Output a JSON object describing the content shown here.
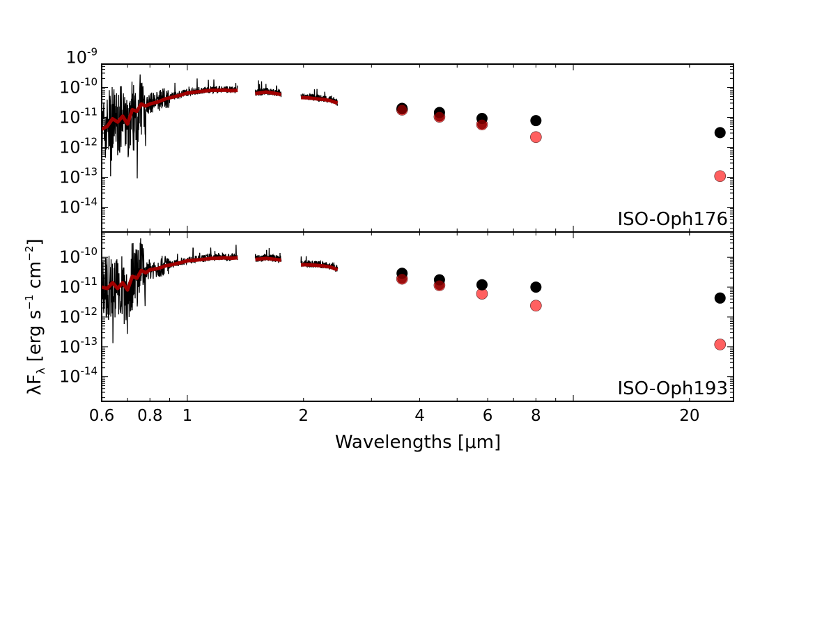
{
  "chart_data": {
    "type": "line+scatter",
    "x_scale": "log",
    "y_scale": "log",
    "xlim": [
      0.6,
      26
    ],
    "xlabel": "Wavelengths [μm]",
    "ylabel_parts": {
      "lambda": "λF",
      "sub": "λ",
      "open": " [erg s",
      "sup1": "−1",
      "mid": " cm",
      "sup2": "−2",
      "close": "]"
    },
    "x_ticks": [
      {
        "value": 0.6,
        "label": "0.6"
      },
      {
        "value": 0.8,
        "label": "0.8"
      },
      {
        "value": 1,
        "label": "1"
      },
      {
        "value": 2,
        "label": "2"
      },
      {
        "value": 4,
        "label": "4"
      },
      {
        "value": 6,
        "label": "6"
      },
      {
        "value": 8,
        "label": "8"
      },
      {
        "value": 20,
        "label": "20"
      }
    ],
    "colors": {
      "observed": "#000000",
      "model": "#a00000",
      "model_photometry": "#ff6060"
    },
    "panels": [
      {
        "name": "ISO-Oph176",
        "ylim": [
          1.5e-15,
          6e-10
        ],
        "y_ticks": [
          {
            "value": 1e-09,
            "base": "10",
            "exp": "-9"
          },
          {
            "value": 1e-10,
            "base": "10",
            "exp": "-10"
          },
          {
            "value": 1e-11,
            "base": "10",
            "exp": "-11"
          },
          {
            "value": 1e-12,
            "base": "10",
            "exp": "-12"
          },
          {
            "value": 1e-13,
            "base": "10",
            "exp": "-13"
          },
          {
            "value": 1e-14,
            "base": "10",
            "exp": "-14"
          }
        ],
        "spectrum_segments": [
          {
            "x": [
              0.6,
              0.62,
              0.64,
              0.66,
              0.68,
              0.7,
              0.72,
              0.74,
              0.76,
              0.78,
              0.8,
              0.84,
              0.88,
              0.92,
              0.96,
              1.0,
              1.05,
              1.1,
              1.15,
              1.2,
              1.25,
              1.3,
              1.35
            ],
            "y": [
              3e-12,
              5e-12,
              1e-11,
              6e-12,
              1.2e-11,
              5e-12,
              2e-11,
              1.5e-11,
              3e-11,
              2.5e-11,
              3e-11,
              3.5e-11,
              4.5e-11,
              5e-11,
              6e-11,
              7e-11,
              7.5e-11,
              8e-11,
              8.5e-11,
              8.5e-11,
              9e-11,
              8e-11,
              8.5e-11
            ]
          },
          {
            "x": [
              1.5,
              1.55,
              1.6,
              1.65,
              1.7,
              1.75
            ],
            "y": [
              6.5e-11,
              7e-11,
              7.5e-11,
              7e-11,
              6.5e-11,
              6e-11
            ]
          },
          {
            "x": [
              1.97,
              2.05,
              2.15,
              2.25,
              2.35,
              2.45
            ],
            "y": [
              5e-11,
              4.8e-11,
              4.5e-11,
              4.2e-11,
              4e-11,
              3.2e-11
            ]
          }
        ],
        "model_segments": [
          {
            "x": [
              0.6,
              0.62,
              0.64,
              0.66,
              0.68,
              0.7,
              0.72,
              0.74,
              0.76,
              0.78,
              0.8,
              0.84,
              0.88,
              0.92,
              0.96,
              1.0,
              1.05,
              1.1,
              1.15,
              1.2,
              1.25,
              1.3,
              1.35
            ],
            "y": [
              4e-12,
              5e-12,
              9e-12,
              7e-12,
              1.1e-11,
              6e-12,
              1.8e-11,
              1.6e-11,
              2.8e-11,
              2.4e-11,
              2.8e-11,
              3.3e-11,
              4.2e-11,
              4.8e-11,
              5.5e-11,
              6.5e-11,
              7e-11,
              7.5e-11,
              8e-11,
              8e-11,
              8.2e-11,
              7.8e-11,
              8e-11
            ]
          },
          {
            "x": [
              1.5,
              1.55,
              1.6,
              1.65,
              1.7,
              1.75
            ],
            "y": [
              6.2e-11,
              6.6e-11,
              7e-11,
              6.6e-11,
              6.2e-11,
              5.8e-11
            ]
          },
          {
            "x": [
              1.97,
              2.05,
              2.15,
              2.25,
              2.35,
              2.45
            ],
            "y": [
              4.6e-11,
              4.5e-11,
              4.2e-11,
              4e-11,
              3.6e-11,
              3e-11
            ]
          }
        ],
        "photometry_observed": {
          "x": [
            3.6,
            4.5,
            5.8,
            8.0,
            24.0
          ],
          "y": [
            2e-11,
            1.45e-11,
            9.2e-12,
            7.8e-12,
            3.1e-12
          ]
        },
        "photometry_model": {
          "x": [
            3.6,
            4.5,
            5.8,
            8.0,
            24.0
          ],
          "y": [
            1.8e-11,
            1.05e-11,
            5.8e-12,
            2.2e-12,
            1.1e-13
          ]
        }
      },
      {
        "name": "ISO-Oph193",
        "ylim": [
          1.5e-15,
          7e-10
        ],
        "y_ticks": [
          {
            "value": 1e-10,
            "base": "10",
            "exp": "-10"
          },
          {
            "value": 1e-11,
            "base": "10",
            "exp": "-11"
          },
          {
            "value": 1e-12,
            "base": "10",
            "exp": "-12"
          },
          {
            "value": 1e-13,
            "base": "10",
            "exp": "-13"
          },
          {
            "value": 1e-14,
            "base": "10",
            "exp": "-14"
          }
        ],
        "spectrum_segments": [
          {
            "x": [
              0.6,
              0.62,
              0.64,
              0.66,
              0.68,
              0.7,
              0.72,
              0.74,
              0.76,
              0.78,
              0.8,
              0.84,
              0.88,
              0.92,
              0.96,
              1.0,
              1.05,
              1.1,
              1.15,
              1.2,
              1.25,
              1.3,
              1.35
            ],
            "y": [
              1e-11,
              8e-12,
              1.5e-11,
              8e-12,
              1.5e-11,
              7e-12,
              2.5e-11,
              2e-11,
              4e-11,
              3e-11,
              4e-11,
              4.5e-11,
              5.5e-11,
              6e-11,
              7e-11,
              8e-11,
              8.5e-11,
              9e-11,
              1e-10,
              1e-10,
              1.05e-10,
              1e-10,
              1.05e-10
            ]
          },
          {
            "x": [
              1.5,
              1.55,
              1.6,
              1.65,
              1.7,
              1.75
            ],
            "y": [
              9e-11,
              9.5e-11,
              1e-10,
              9.5e-11,
              9e-11,
              8.5e-11
            ]
          },
          {
            "x": [
              1.97,
              2.05,
              2.15,
              2.25,
              2.35,
              2.45
            ],
            "y": [
              6e-11,
              6e-11,
              5.8e-11,
              5.5e-11,
              5e-11,
              4e-11
            ]
          }
        ],
        "model_segments": [
          {
            "x": [
              0.6,
              0.62,
              0.64,
              0.66,
              0.68,
              0.7,
              0.72,
              0.74,
              0.76,
              0.78,
              0.8,
              0.84,
              0.88,
              0.92,
              0.96,
              1.0,
              1.05,
              1.1,
              1.15,
              1.2,
              1.25,
              1.3,
              1.35
            ],
            "y": [
              1e-11,
              9e-12,
              1.4e-11,
              9e-12,
              1.4e-11,
              8e-12,
              2.3e-11,
              2e-11,
              3.6e-11,
              3e-11,
              3.8e-11,
              4.2e-11,
              5.2e-11,
              5.8e-11,
              6.6e-11,
              7.6e-11,
              8e-11,
              8.5e-11,
              9.2e-11,
              9.3e-11,
              9.6e-11,
              9.3e-11,
              9.6e-11
            ]
          },
          {
            "x": [
              1.5,
              1.55,
              1.6,
              1.65,
              1.7,
              1.75
            ],
            "y": [
              8.5e-11,
              8.8e-11,
              9.2e-11,
              8.8e-11,
              8.4e-11,
              8e-11
            ]
          },
          {
            "x": [
              1.97,
              2.05,
              2.15,
              2.25,
              2.35,
              2.45
            ],
            "y": [
              5.6e-11,
              5.6e-11,
              5.4e-11,
              5.1e-11,
              4.7e-11,
              3.8e-11
            ]
          }
        ],
        "photometry_observed": {
          "x": [
            3.6,
            4.5,
            5.8,
            8.0,
            24.0
          ],
          "y": [
            2.9e-11,
            1.75e-11,
            1.2e-11,
            1e-11,
            4.3e-12
          ]
        },
        "photometry_model": {
          "x": [
            3.6,
            4.5,
            5.8,
            8.0,
            24.0
          ],
          "y": [
            1.9e-11,
            1.15e-11,
            6e-12,
            2.4e-12,
            1.2e-13
          ]
        }
      }
    ]
  }
}
